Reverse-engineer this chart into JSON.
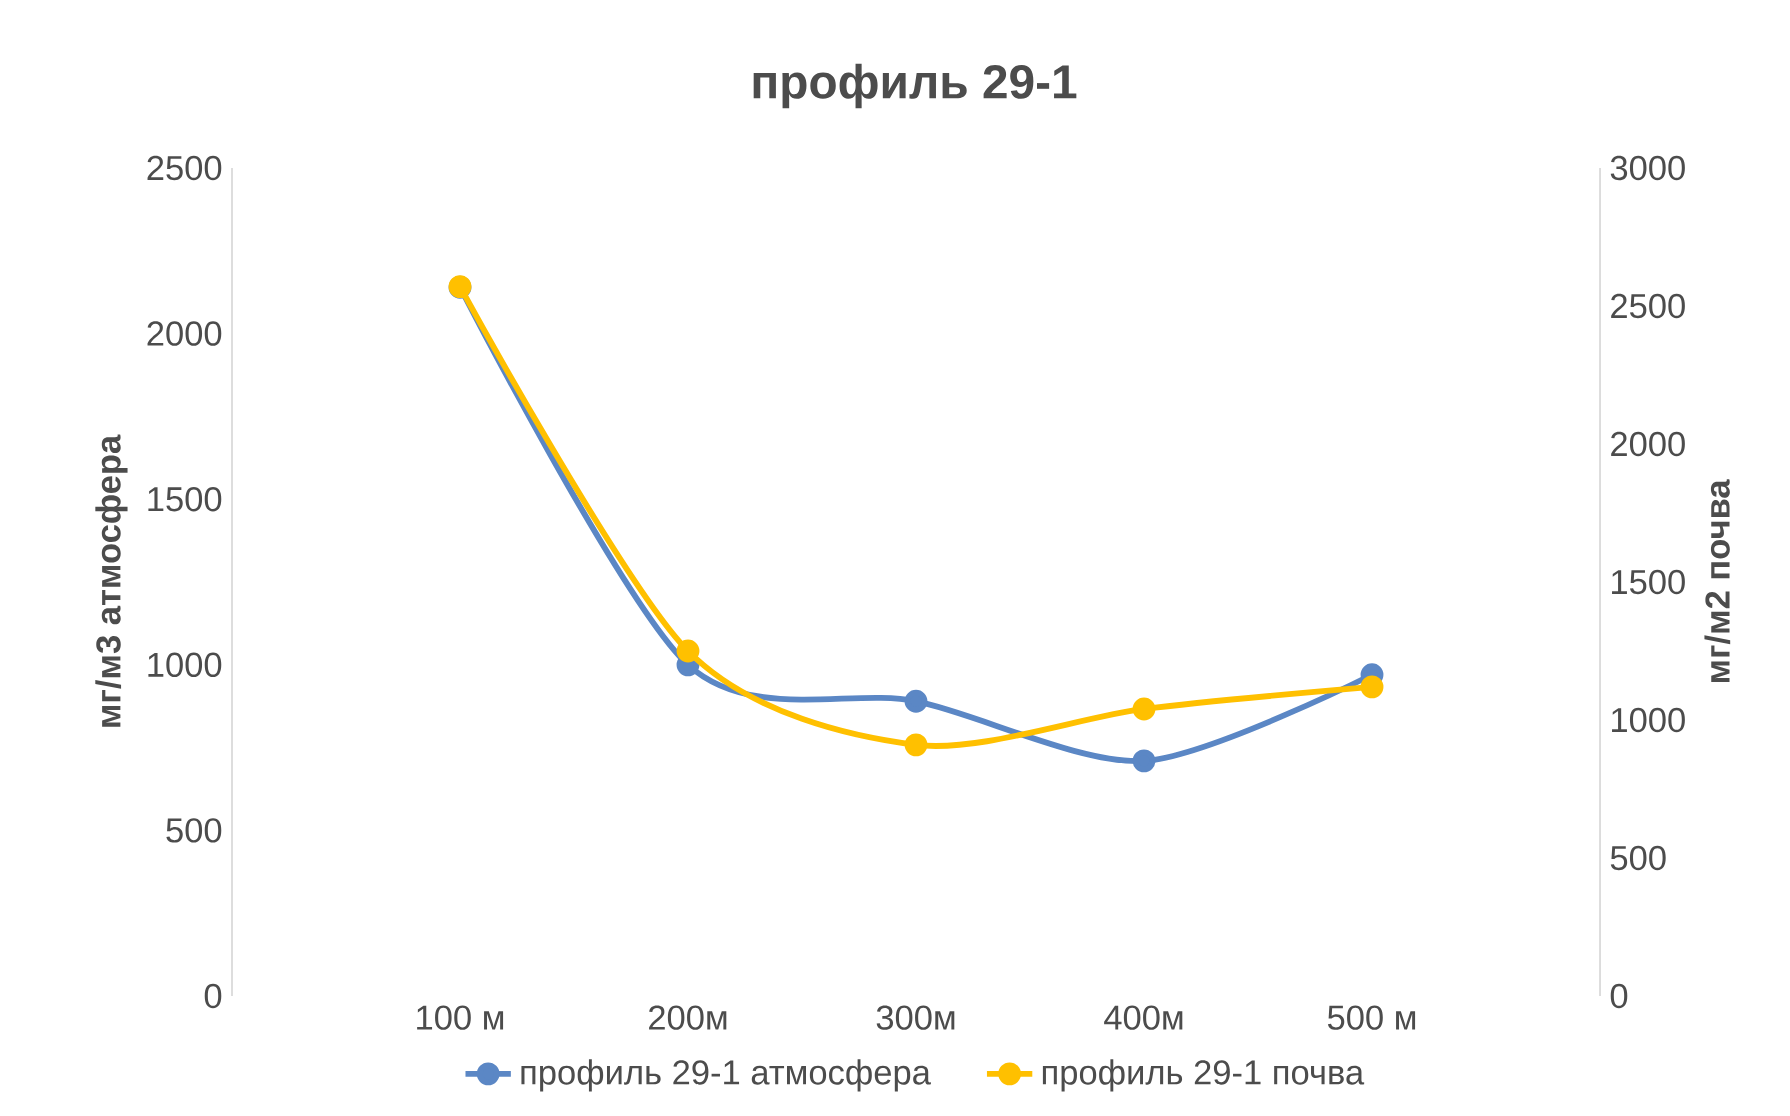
{
  "chart_data": {
    "type": "line",
    "title": "профиль 29-1",
    "ylabel": "мг/м3 атмосфера",
    "y2label": "мг/м2 почва",
    "categories": [
      "100 м",
      "200м",
      "300м",
      "400м",
      "500 м"
    ],
    "series": [
      {
        "name": "профиль 29-1 атмосфера",
        "color": "#5b87c5",
        "values": [
          2140,
          1000,
          890,
          710,
          970
        ]
      },
      {
        "name": "профиль 29-1 почва",
        "color": "#ffc000",
        "axis": "y2",
        "values": [
          2570,
          1250,
          910,
          1040,
          1120
        ]
      }
    ],
    "ylim": [
      0,
      2500
    ],
    "yticks": [
      0,
      500,
      1000,
      1500,
      2000,
      2500
    ],
    "y2lim": [
      0,
      3000
    ],
    "y2ticks": [
      0,
      500,
      1000,
      1500,
      2000,
      2500,
      3000
    ],
    "grid": false,
    "legend": "bottom",
    "marker": "circle",
    "line_style": "solid"
  }
}
